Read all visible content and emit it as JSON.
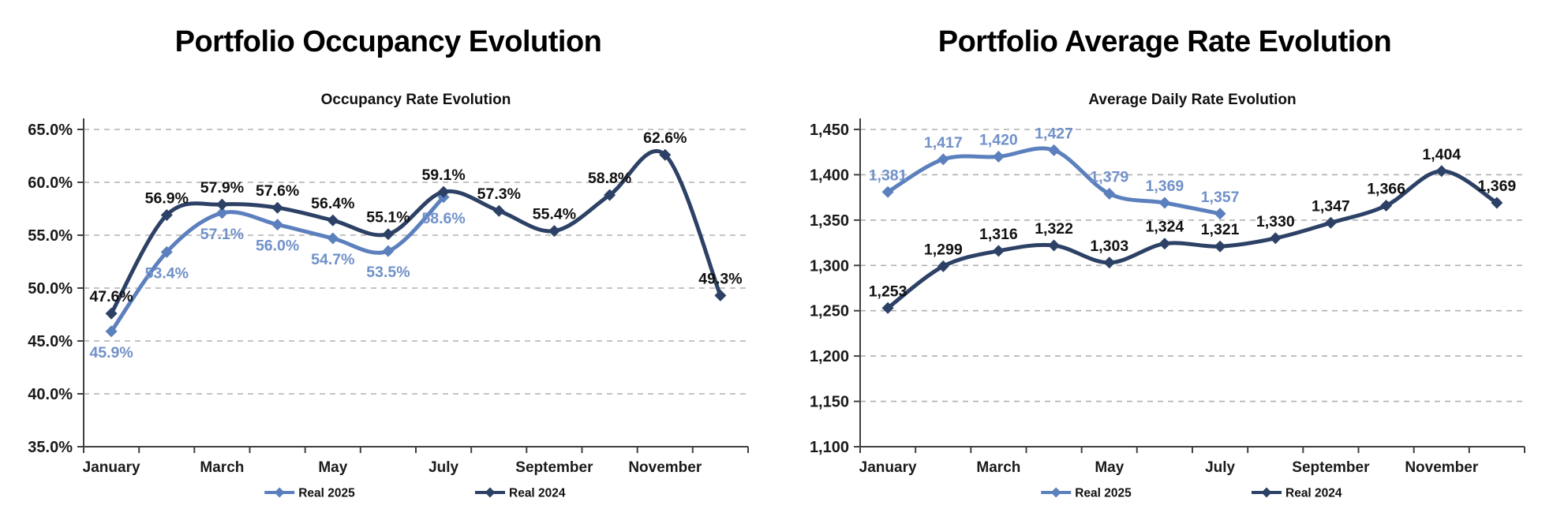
{
  "page": {
    "background": "#ffffff"
  },
  "axis_style": {
    "grid_color": "#b0b0b0",
    "axis_color": "#404040",
    "tick_label_color": "#1a1a1a",
    "subtitle_color": "#111111"
  },
  "legend": {
    "items": [
      "Real 2025",
      "Real 2024"
    ]
  },
  "chart_data": [
    {
      "type": "line",
      "page_title": "Portfolio Occupancy Evolution",
      "title": "Occupancy Rate Evolution",
      "x_tick_labels": [
        "January",
        "March",
        "May",
        "July",
        "September",
        "November"
      ],
      "x_label_month_step": 2,
      "n_categories": 12,
      "ylim": [
        35,
        65
      ],
      "ytick_step": 5,
      "ytick_labels": [
        "35.0%",
        "40.0%",
        "45.0%",
        "50.0%",
        "55.0%",
        "60.0%",
        "65.0%"
      ],
      "grid": "dashed-horizontal",
      "legend_position": "bottom",
      "series": [
        {
          "name": "Real 2025",
          "color": "#5B80BD",
          "label_color": "#7191C9",
          "label_position": "below",
          "values": [
            45.9,
            53.4,
            57.1,
            56.0,
            54.7,
            53.5,
            58.6
          ],
          "labels": [
            "45.9%",
            "53.4%",
            "57.1%",
            "56.0%",
            "54.7%",
            "53.5%",
            "58.6%"
          ]
        },
        {
          "name": "Real 2024",
          "color": "#2C4165",
          "label_color": "#111111",
          "label_position": "above",
          "values": [
            47.6,
            56.9,
            57.9,
            57.6,
            56.4,
            55.1,
            59.1,
            57.3,
            55.4,
            58.8,
            62.6,
            49.3
          ],
          "labels": [
            "47.6%",
            "56.9%",
            "57.9%",
            "57.6%",
            "56.4%",
            "55.1%",
            "59.1%",
            "57.3%",
            "55.4%",
            "58.8%",
            "62.6%",
            "49.3%"
          ]
        }
      ]
    },
    {
      "type": "line",
      "page_title": "Portfolio Average Rate Evolution",
      "title": "Average Daily Rate Evolution",
      "x_tick_labels": [
        "January",
        "March",
        "May",
        "July",
        "September",
        "November"
      ],
      "x_label_month_step": 2,
      "n_categories": 12,
      "ylim": [
        1100,
        1450
      ],
      "ytick_step": 50,
      "ytick_labels": [
        "1,100",
        "1,150",
        "1,200",
        "1,250",
        "1,300",
        "1,350",
        "1,400",
        "1,450"
      ],
      "grid": "dashed-horizontal",
      "legend_position": "bottom",
      "series": [
        {
          "name": "Real 2025",
          "color": "#5B80BD",
          "label_color": "#7191C9",
          "label_position": "above",
          "values": [
            1381,
            1417,
            1420,
            1427,
            1379,
            1369,
            1357
          ],
          "labels": [
            "1,381",
            "1,417",
            "1,420",
            "1,427",
            "1,379",
            "1,369",
            "1,357"
          ]
        },
        {
          "name": "Real 2024",
          "color": "#2C4165",
          "label_color": "#111111",
          "label_position": "above",
          "values": [
            1253,
            1299,
            1316,
            1322,
            1303,
            1324,
            1321,
            1330,
            1347,
            1366,
            1404,
            1369
          ],
          "labels": [
            "1,253",
            "1,299",
            "1,316",
            "1,322",
            "1,303",
            "1,324",
            "1,321",
            "1,330",
            "1,347",
            "1,366",
            "1,404",
            "1,369"
          ]
        }
      ]
    }
  ]
}
